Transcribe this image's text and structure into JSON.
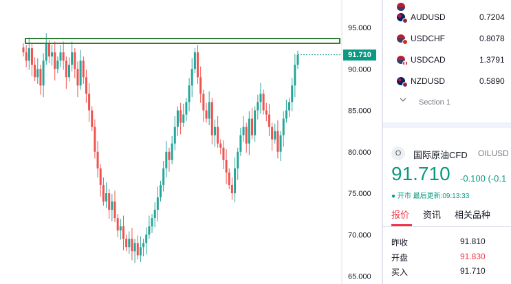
{
  "chart": {
    "y_axis_ticks": [
      "95.000",
      "90.000",
      "85.000",
      "80.000",
      "75.000",
      "70.000",
      "65.000"
    ],
    "last_price": "91.710",
    "colors": {
      "up": "#26a69a",
      "down": "#ef5350",
      "resistance_box": "#2e7d32",
      "last_tag": "#0a9981"
    }
  },
  "watchlist": {
    "items": [
      {
        "symbol": "AUDUSD",
        "price": "0.7204",
        "flag": "au"
      },
      {
        "symbol": "USDCHF",
        "price": "0.8078",
        "flag": "ch"
      },
      {
        "symbol": "USDCAD",
        "price": "1.3791",
        "flag": "ca"
      },
      {
        "symbol": "NZDUSD",
        "price": "0.5890",
        "flag": "nz"
      }
    ],
    "section_label": "Section 1"
  },
  "detail": {
    "icon_letter": "O",
    "name": "国际原油CFD",
    "ticker": "OILUSD",
    "price": "91.710",
    "change": "-0.100",
    "change_pct": "(-0.1",
    "status": "● 开市 最后更新:09:13:33",
    "tabs": [
      "报价",
      "资讯",
      "相关品种"
    ],
    "stats": [
      {
        "label": "昨收",
        "value": "91.810",
        "color": "#131722"
      },
      {
        "label": "开盘",
        "value": "91.830",
        "color": "#f23645"
      },
      {
        "label": "买入",
        "value": "91.710",
        "color": "#131722"
      }
    ]
  }
}
